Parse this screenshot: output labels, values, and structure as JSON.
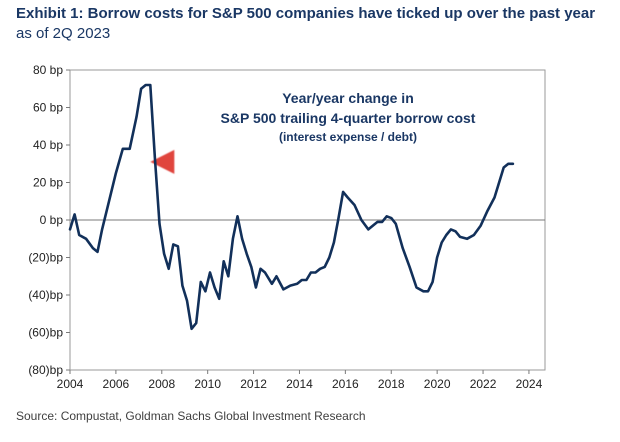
{
  "title": "Exhibit 1: Borrow costs for S&P 500 companies have ticked up over the past year",
  "subtitle": "as of 2Q 2023",
  "source": "Source: Compustat, Goldman Sachs Global Investment Research",
  "chart_data": {
    "type": "line",
    "title": "Exhibit 1: Borrow costs for S&P 500 companies have ticked up over the past year",
    "subtitle": "as of 2Q 2023",
    "xlabel": "",
    "ylabel": "",
    "xlim": [
      2004,
      2024.7
    ],
    "ylim": [
      -80,
      80
    ],
    "x_ticks": [
      2004,
      2006,
      2008,
      2010,
      2012,
      2014,
      2016,
      2018,
      2020,
      2022,
      2024
    ],
    "y_ticks": [
      80,
      60,
      40,
      20,
      0,
      -20,
      -40,
      -60,
      -80
    ],
    "y_tick_labels": [
      "80 bp",
      "60 bp",
      "40 bp",
      "20 bp",
      "0 bp",
      "(20)bp",
      "(40)bp",
      "(60)bp",
      "(80)bp"
    ],
    "grid": false,
    "line_color": "#12305a",
    "annotation": {
      "lines": [
        "Year/year change in",
        "S&P 500 trailing 4-quarter borrow cost",
        "(interest expense / debt)"
      ],
      "arrow_color": "#e0443c",
      "arrow_y": 31,
      "arrow_x_from": 2023.3,
      "arrow_x_to": 2007.5
    },
    "series": [
      {
        "x": [
          2004.0,
          2004.2,
          2004.4,
          2004.7,
          2005.0,
          2005.2,
          2005.4,
          2005.7,
          2006.0,
          2006.3,
          2006.6,
          2006.9,
          2007.1,
          2007.3,
          2007.5,
          2007.7,
          2007.9,
          2008.1,
          2008.3,
          2008.5,
          2008.7,
          2008.9,
          2009.1,
          2009.3,
          2009.5,
          2009.7,
          2009.9,
          2010.1,
          2010.3,
          2010.5,
          2010.7,
          2010.9,
          2011.1,
          2011.3,
          2011.5,
          2011.7,
          2011.9,
          2012.1,
          2012.3,
          2012.5,
          2012.8,
          2013.0,
          2013.3,
          2013.6,
          2013.9,
          2014.1,
          2014.3,
          2014.5,
          2014.7,
          2014.9,
          2015.1,
          2015.3,
          2015.5,
          2015.7,
          2015.9,
          2016.1,
          2016.4,
          2016.7,
          2017.0,
          2017.2,
          2017.4,
          2017.6,
          2017.8,
          2018.0,
          2018.2,
          2018.5,
          2018.8,
          2019.1,
          2019.4,
          2019.6,
          2019.8,
          2020.0,
          2020.2,
          2020.4,
          2020.6,
          2020.8,
          2021.0,
          2021.3,
          2021.6,
          2021.9,
          2022.2,
          2022.5,
          2022.7,
          2022.9,
          2023.1,
          2023.3
        ],
        "values": [
          -5,
          3,
          -8,
          -10,
          -15,
          -17,
          -5,
          10,
          25,
          38,
          38,
          55,
          70,
          72,
          72,
          33,
          -2,
          -18,
          -26,
          -13,
          -14,
          -35,
          -43,
          -58,
          -55,
          -33,
          -38,
          -28,
          -36,
          -42,
          -22,
          -30,
          -10,
          2,
          -10,
          -18,
          -25,
          -36,
          -26,
          -28,
          -34,
          -30,
          -37,
          -35,
          -34,
          -32,
          -32,
          -28,
          -28,
          -26,
          -25,
          -20,
          -12,
          1,
          15,
          12,
          8,
          0,
          -5,
          -3,
          -1,
          -1,
          2,
          1,
          -2,
          -15,
          -25,
          -36,
          -38,
          -38,
          -33,
          -20,
          -12,
          -8,
          -5,
          -6,
          -9,
          -10,
          -8,
          -3,
          5,
          12,
          20,
          28,
          30,
          30
        ]
      }
    ]
  }
}
